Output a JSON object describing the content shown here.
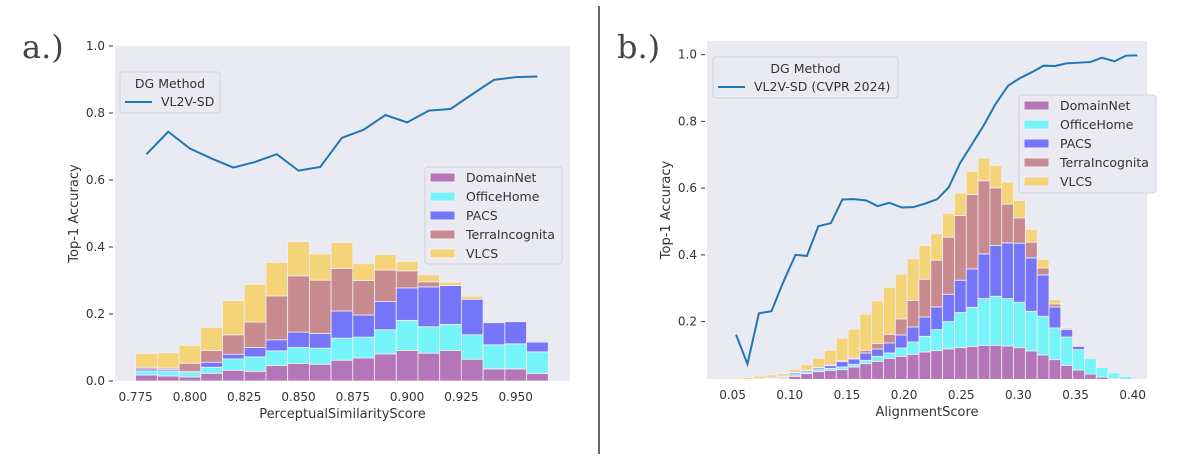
{
  "colors": {
    "background_plot": "#eaeaf2",
    "line": "#1f77b4",
    "DomainNet": "#b575b9",
    "OfficeHome": "#75f5f9",
    "PACS": "#7575f9",
    "TerraIncognita": "#c78a8e",
    "VLCS": "#f5d379"
  },
  "chart_data": [
    {
      "panel_label": "a.)",
      "type": "bar",
      "stacked": true,
      "xlabel": "PerceptualSimilarityScore",
      "ylabel": "Top-1 Accuracy",
      "xlim": [
        0.7655,
        0.975
      ],
      "ylim": [
        0.0,
        1.0
      ],
      "xticks": [
        0.775,
        0.8,
        0.825,
        0.85,
        0.875,
        0.9,
        0.925,
        0.95
      ],
      "xtick_labels": [
        "0.775",
        "0.800",
        "0.825",
        "0.850",
        "0.875",
        "0.900",
        "0.925",
        "0.950"
      ],
      "yticks": [
        0.0,
        0.2,
        0.4,
        0.6,
        0.8,
        1.0
      ],
      "ytick_labels": [
        "0.0",
        "0.2",
        "0.4",
        "0.6",
        "0.8",
        "1.0"
      ],
      "grid": false,
      "bin_start": 0.775,
      "bin_width": 0.01,
      "bar_legend_placement": "center-right",
      "series": [
        {
          "name": "DomainNet",
          "values": [
            0.018,
            0.015,
            0.012,
            0.023,
            0.032,
            0.029,
            0.046,
            0.052,
            0.05,
            0.062,
            0.069,
            0.081,
            0.091,
            0.083,
            0.091,
            0.065,
            0.036,
            0.036,
            0.022
          ]
        },
        {
          "name": "OfficeHome",
          "values": [
            0.012,
            0.015,
            0.013,
            0.018,
            0.034,
            0.043,
            0.044,
            0.048,
            0.048,
            0.066,
            0.062,
            0.072,
            0.09,
            0.079,
            0.078,
            0.073,
            0.072,
            0.075,
            0.065
          ]
        },
        {
          "name": "PACS",
          "values": [
            0.006,
            0.005,
            0.004,
            0.015,
            0.014,
            0.028,
            0.033,
            0.046,
            0.044,
            0.081,
            0.066,
            0.084,
            0.097,
            0.119,
            0.116,
            0.106,
            0.066,
            0.066,
            0.029
          ]
        },
        {
          "name": "TerraIncognita",
          "values": [
            0.005,
            0.004,
            0.024,
            0.035,
            0.058,
            0.076,
            0.131,
            0.168,
            0.159,
            0.127,
            0.103,
            0.094,
            0.051,
            0.015,
            0.0,
            0.0,
            0.0,
            0.0,
            0.0
          ]
        },
        {
          "name": "VLCS",
          "values": [
            0.041,
            0.045,
            0.053,
            0.069,
            0.102,
            0.112,
            0.1,
            0.102,
            0.078,
            0.077,
            0.05,
            0.046,
            0.028,
            0.021,
            0.01,
            0.009,
            0.0,
            0.0,
            0.0
          ]
        }
      ],
      "line_legend_title": "DG Method",
      "line_legend_placement": "upper-left",
      "line": {
        "name": "VL2V-SD",
        "x": [
          0.78,
          0.79,
          0.8,
          0.81,
          0.82,
          0.83,
          0.84,
          0.85,
          0.86,
          0.87,
          0.88,
          0.89,
          0.9,
          0.91,
          0.92,
          0.93,
          0.94,
          0.95,
          0.96
        ],
        "y": [
          0.677,
          0.744,
          0.694,
          0.664,
          0.637,
          0.654,
          0.677,
          0.628,
          0.639,
          0.726,
          0.75,
          0.794,
          0.772,
          0.807,
          0.812,
          0.856,
          0.899,
          0.907,
          0.909
        ]
      }
    },
    {
      "panel_label": "b.)",
      "type": "bar",
      "stacked": true,
      "xlabel": "AlignmentScore",
      "ylabel": "Top-1 Accuracy",
      "xlim": [
        0.0276,
        0.4125
      ],
      "ylim": [
        0.028,
        1.041
      ],
      "xticks": [
        0.05,
        0.1,
        0.15,
        0.2,
        0.25,
        0.3,
        0.35,
        0.4
      ],
      "xtick_labels": [
        "0.05",
        "0.10",
        "0.15",
        "0.20",
        "0.25",
        "0.30",
        "0.35",
        "0.40"
      ],
      "yticks": [
        0.2,
        0.4,
        0.6,
        0.8,
        1.0
      ],
      "ytick_labels": [
        "0.2",
        "0.4",
        "0.6",
        "0.8",
        "1.0"
      ],
      "grid": false,
      "bin_start": 0.0476,
      "bin_width": 0.01034,
      "bar_legend_placement": "center-right",
      "series": [
        {
          "name": "DomainNet",
          "values": [
            0.012,
            0.015,
            0.02,
            0.024,
            0.028,
            0.036,
            0.044,
            0.05,
            0.054,
            0.056,
            0.064,
            0.074,
            0.081,
            0.09,
            0.096,
            0.102,
            0.109,
            0.113,
            0.118,
            0.122,
            0.125,
            0.129,
            0.129,
            0.127,
            0.122,
            0.112,
            0.1,
            0.086,
            0.069,
            0.055,
            0.043,
            0.034,
            0.03,
            0.027,
            0.024
          ]
        },
        {
          "name": "OfficeHome",
          "values": [
            0.003,
            0.003,
            0.003,
            0.004,
            0.004,
            0.005,
            0.005,
            0.006,
            0.006,
            0.008,
            0.008,
            0.01,
            0.015,
            0.016,
            0.025,
            0.037,
            0.047,
            0.063,
            0.082,
            0.105,
            0.118,
            0.14,
            0.147,
            0.142,
            0.136,
            0.119,
            0.116,
            0.095,
            0.085,
            0.061,
            0.047,
            0.028,
            0.016,
            0.008,
            0.006
          ]
        },
        {
          "name": "PACS",
          "values": [
            0.002,
            0.002,
            0.002,
            0.002,
            0.003,
            0.005,
            0.004,
            0.005,
            0.008,
            0.016,
            0.016,
            0.022,
            0.022,
            0.03,
            0.039,
            0.045,
            0.058,
            0.068,
            0.082,
            0.097,
            0.115,
            0.134,
            0.152,
            0.167,
            0.177,
            0.16,
            0.124,
            0.063,
            0.022,
            0.01,
            0,
            0,
            0,
            0,
            0
          ]
        },
        {
          "name": "TerraIncognita",
          "values": [
            0.003,
            0.004,
            0.004,
            0.003,
            0.002,
            0.002,
            0.002,
            0.002,
            0.002,
            0.003,
            0.003,
            0.008,
            0.016,
            0.026,
            0.048,
            0.079,
            0.113,
            0.14,
            0.171,
            0.194,
            0.223,
            0.219,
            0.173,
            0.116,
            0.076,
            0.047,
            0.021,
            0.009,
            0.004,
            0.001,
            0,
            0,
            0,
            0,
            0
          ]
        },
        {
          "name": "VLCS",
          "values": [
            0.01,
            0.008,
            0.008,
            0.007,
            0.007,
            0.009,
            0.016,
            0.027,
            0.044,
            0.067,
            0.086,
            0.108,
            0.128,
            0.141,
            0.134,
            0.125,
            0.101,
            0.079,
            0.071,
            0.067,
            0.069,
            0.068,
            0.067,
            0.066,
            0.052,
            0.038,
            0.025,
            0.013,
            0.002,
            0,
            0,
            0,
            0,
            0,
            0
          ]
        }
      ],
      "line_legend_title": "DG Method",
      "line_legend_placement": "upper-left",
      "line": {
        "name": "VL2V-SD (CVPR 2024)",
        "x": [
          0.053,
          0.063,
          0.073,
          0.084,
          0.094,
          0.105,
          0.115,
          0.125,
          0.136,
          0.146,
          0.156,
          0.167,
          0.177,
          0.187,
          0.198,
          0.208,
          0.218,
          0.229,
          0.239,
          0.249,
          0.26,
          0.27,
          0.28,
          0.291,
          0.301,
          0.311,
          0.322,
          0.332,
          0.342,
          0.353,
          0.363,
          0.373,
          0.384,
          0.394,
          0.404
        ],
        "y": [
          0.161,
          0.073,
          0.225,
          0.231,
          0.316,
          0.4,
          0.397,
          0.486,
          0.495,
          0.566,
          0.567,
          0.563,
          0.546,
          0.556,
          0.542,
          0.543,
          0.553,
          0.567,
          0.602,
          0.675,
          0.735,
          0.79,
          0.852,
          0.907,
          0.929,
          0.946,
          0.967,
          0.966,
          0.974,
          0.976,
          0.978,
          0.991,
          0.98,
          0.997,
          0.998
        ]
      }
    }
  ]
}
